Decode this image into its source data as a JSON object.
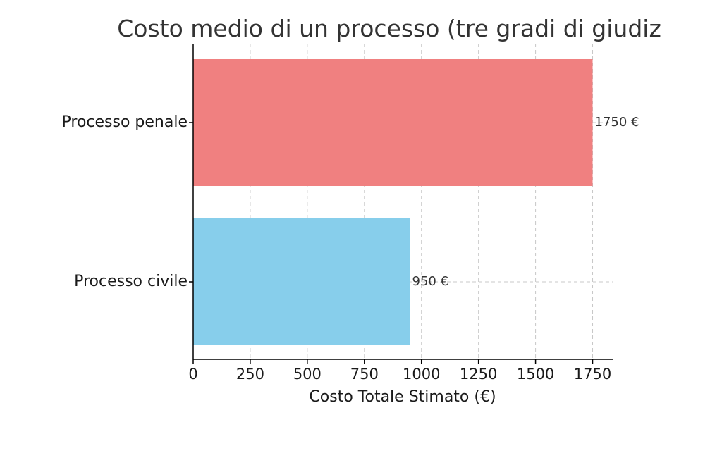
{
  "chart_data": {
    "type": "bar",
    "orientation": "horizontal",
    "title": "Costo medio di un processo (tre gradi di giudiz",
    "xlabel": "Costo Totale Stimato (€)",
    "ylabel": "",
    "categories": [
      "Processo penale",
      "Processo civile"
    ],
    "values": [
      1750,
      950
    ],
    "colors": [
      "#f08080",
      "#87ceeb"
    ],
    "data_labels": [
      "1750 €",
      "950 €"
    ],
    "xlim": [
      0,
      1838
    ],
    "xticks": [
      0,
      250,
      500,
      750,
      1000,
      1250,
      1500,
      1750
    ],
    "grid": true
  }
}
